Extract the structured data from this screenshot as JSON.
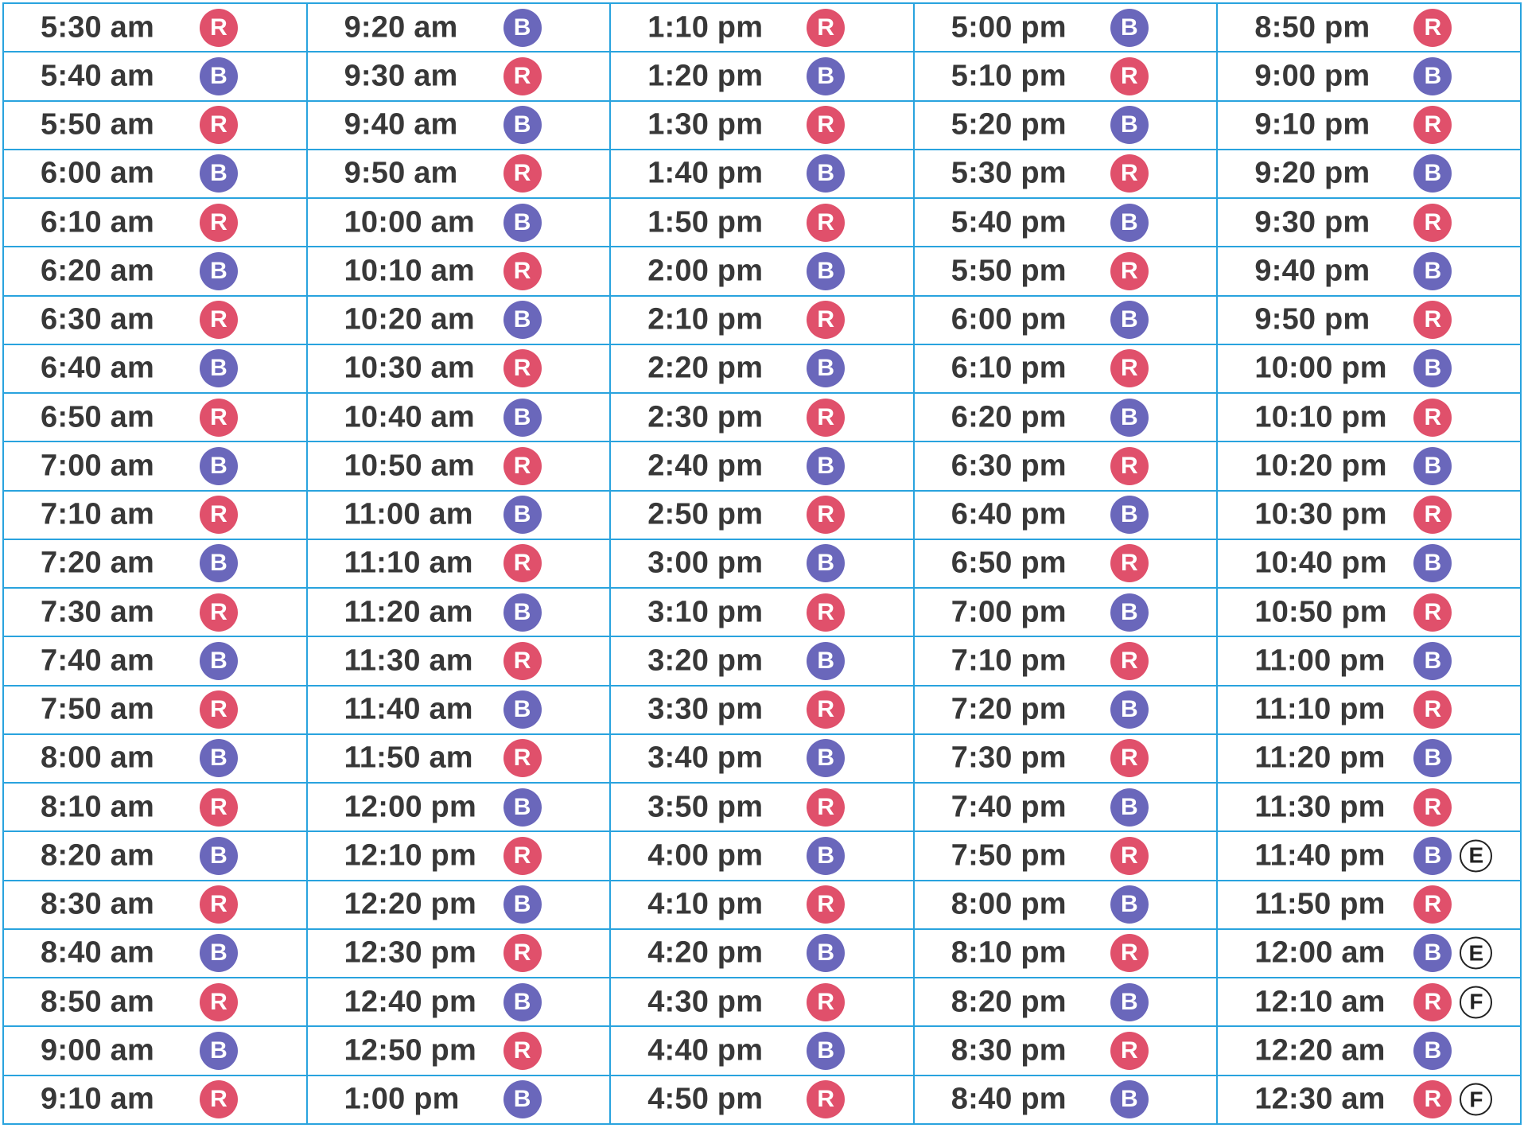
{
  "colors": {
    "R": "#e0506b",
    "B": "#6a67bb",
    "grid": "#29a3de",
    "text": "#383838"
  },
  "columns": [
    [
      {
        "time": "5:30 am",
        "route": "R"
      },
      {
        "time": "5:40 am",
        "route": "B"
      },
      {
        "time": "5:50 am",
        "route": "R"
      },
      {
        "time": "6:00 am",
        "route": "B"
      },
      {
        "time": "6:10 am",
        "route": "R"
      },
      {
        "time": "6:20 am",
        "route": "B"
      },
      {
        "time": "6:30 am",
        "route": "R"
      },
      {
        "time": "6:40 am",
        "route": "B"
      },
      {
        "time": "6:50 am",
        "route": "R"
      },
      {
        "time": "7:00 am",
        "route": "B"
      },
      {
        "time": "7:10 am",
        "route": "R"
      },
      {
        "time": "7:20 am",
        "route": "B"
      },
      {
        "time": "7:30 am",
        "route": "R"
      },
      {
        "time": "7:40 am",
        "route": "B"
      },
      {
        "time": "7:50 am",
        "route": "R"
      },
      {
        "time": "8:00 am",
        "route": "B"
      },
      {
        "time": "8:10 am",
        "route": "R"
      },
      {
        "time": "8:20 am",
        "route": "B"
      },
      {
        "time": "8:30 am",
        "route": "R"
      },
      {
        "time": "8:40 am",
        "route": "B"
      },
      {
        "time": "8:50 am",
        "route": "R"
      },
      {
        "time": "9:00 am",
        "route": "B"
      },
      {
        "time": "9:10 am",
        "route": "R"
      }
    ],
    [
      {
        "time": "9:20 am",
        "route": "B"
      },
      {
        "time": "9:30 am",
        "route": "R"
      },
      {
        "time": "9:40 am",
        "route": "B"
      },
      {
        "time": "9:50 am",
        "route": "R"
      },
      {
        "time": "10:00 am",
        "route": "B"
      },
      {
        "time": "10:10 am",
        "route": "R"
      },
      {
        "time": "10:20 am",
        "route": "B"
      },
      {
        "time": "10:30 am",
        "route": "R"
      },
      {
        "time": "10:40 am",
        "route": "B"
      },
      {
        "time": "10:50 am",
        "route": "R"
      },
      {
        "time": "11:00 am",
        "route": "B"
      },
      {
        "time": "11:10 am",
        "route": "R"
      },
      {
        "time": "11:20 am",
        "route": "B"
      },
      {
        "time": "11:30 am",
        "route": "R"
      },
      {
        "time": "11:40 am",
        "route": "B"
      },
      {
        "time": "11:50 am",
        "route": "R"
      },
      {
        "time": "12:00 pm",
        "route": "B"
      },
      {
        "time": "12:10 pm",
        "route": "R"
      },
      {
        "time": "12:20 pm",
        "route": "B"
      },
      {
        "time": "12:30 pm",
        "route": "R"
      },
      {
        "time": "12:40 pm",
        "route": "B"
      },
      {
        "time": "12:50 pm",
        "route": "R"
      },
      {
        "time": "1:00 pm",
        "route": "B"
      }
    ],
    [
      {
        "time": "1:10 pm",
        "route": "R"
      },
      {
        "time": "1:20 pm",
        "route": "B"
      },
      {
        "time": "1:30 pm",
        "route": "R"
      },
      {
        "time": "1:40 pm",
        "route": "B"
      },
      {
        "time": "1:50 pm",
        "route": "R"
      },
      {
        "time": "2:00 pm",
        "route": "B"
      },
      {
        "time": "2:10 pm",
        "route": "R"
      },
      {
        "time": "2:20 pm",
        "route": "B"
      },
      {
        "time": "2:30 pm",
        "route": "R"
      },
      {
        "time": "2:40 pm",
        "route": "B"
      },
      {
        "time": "2:50 pm",
        "route": "R"
      },
      {
        "time": "3:00 pm",
        "route": "B"
      },
      {
        "time": "3:10 pm",
        "route": "R"
      },
      {
        "time": "3:20 pm",
        "route": "B"
      },
      {
        "time": "3:30 pm",
        "route": "R"
      },
      {
        "time": "3:40 pm",
        "route": "B"
      },
      {
        "time": "3:50 pm",
        "route": "R"
      },
      {
        "time": "4:00 pm",
        "route": "B"
      },
      {
        "time": "4:10 pm",
        "route": "R"
      },
      {
        "time": "4:20 pm",
        "route": "B"
      },
      {
        "time": "4:30 pm",
        "route": "R"
      },
      {
        "time": "4:40 pm",
        "route": "B"
      },
      {
        "time": "4:50 pm",
        "route": "R"
      }
    ],
    [
      {
        "time": "5:00 pm",
        "route": "B"
      },
      {
        "time": "5:10 pm",
        "route": "R"
      },
      {
        "time": "5:20 pm",
        "route": "B"
      },
      {
        "time": "5:30 pm",
        "route": "R"
      },
      {
        "time": "5:40 pm",
        "route": "B"
      },
      {
        "time": "5:50 pm",
        "route": "R"
      },
      {
        "time": "6:00 pm",
        "route": "B"
      },
      {
        "time": "6:10 pm",
        "route": "R"
      },
      {
        "time": "6:20 pm",
        "route": "B"
      },
      {
        "time": "6:30 pm",
        "route": "R"
      },
      {
        "time": "6:40 pm",
        "route": "B"
      },
      {
        "time": "6:50 pm",
        "route": "R"
      },
      {
        "time": "7:00 pm",
        "route": "B"
      },
      {
        "time": "7:10 pm",
        "route": "R"
      },
      {
        "time": "7:20 pm",
        "route": "B"
      },
      {
        "time": "7:30 pm",
        "route": "R"
      },
      {
        "time": "7:40 pm",
        "route": "B"
      },
      {
        "time": "7:50 pm",
        "route": "R"
      },
      {
        "time": "8:00 pm",
        "route": "B"
      },
      {
        "time": "8:10 pm",
        "route": "R"
      },
      {
        "time": "8:20 pm",
        "route": "B"
      },
      {
        "time": "8:30 pm",
        "route": "R"
      },
      {
        "time": "8:40 pm",
        "route": "B"
      }
    ],
    [
      {
        "time": "8:50 pm",
        "route": "R"
      },
      {
        "time": "9:00 pm",
        "route": "B"
      },
      {
        "time": "9:10 pm",
        "route": "R"
      },
      {
        "time": "9:20 pm",
        "route": "B"
      },
      {
        "time": "9:30 pm",
        "route": "R"
      },
      {
        "time": "9:40 pm",
        "route": "B"
      },
      {
        "time": "9:50 pm",
        "route": "R"
      },
      {
        "time": "10:00 pm",
        "route": "B"
      },
      {
        "time": "10:10 pm",
        "route": "R"
      },
      {
        "time": "10:20 pm",
        "route": "B"
      },
      {
        "time": "10:30 pm",
        "route": "R"
      },
      {
        "time": "10:40 pm",
        "route": "B"
      },
      {
        "time": "10:50 pm",
        "route": "R"
      },
      {
        "time": "11:00 pm",
        "route": "B"
      },
      {
        "time": "11:10 pm",
        "route": "R"
      },
      {
        "time": "11:20 pm",
        "route": "B"
      },
      {
        "time": "11:30 pm",
        "route": "R"
      },
      {
        "time": "11:40 pm",
        "route": "B",
        "note": "E"
      },
      {
        "time": "11:50 pm",
        "route": "R"
      },
      {
        "time": "12:00 am",
        "route": "B",
        "note": "E"
      },
      {
        "time": "12:10 am",
        "route": "R",
        "note": "F"
      },
      {
        "time": "12:20 am",
        "route": "B"
      },
      {
        "time": "12:30 am",
        "route": "R",
        "note": "F"
      }
    ]
  ]
}
